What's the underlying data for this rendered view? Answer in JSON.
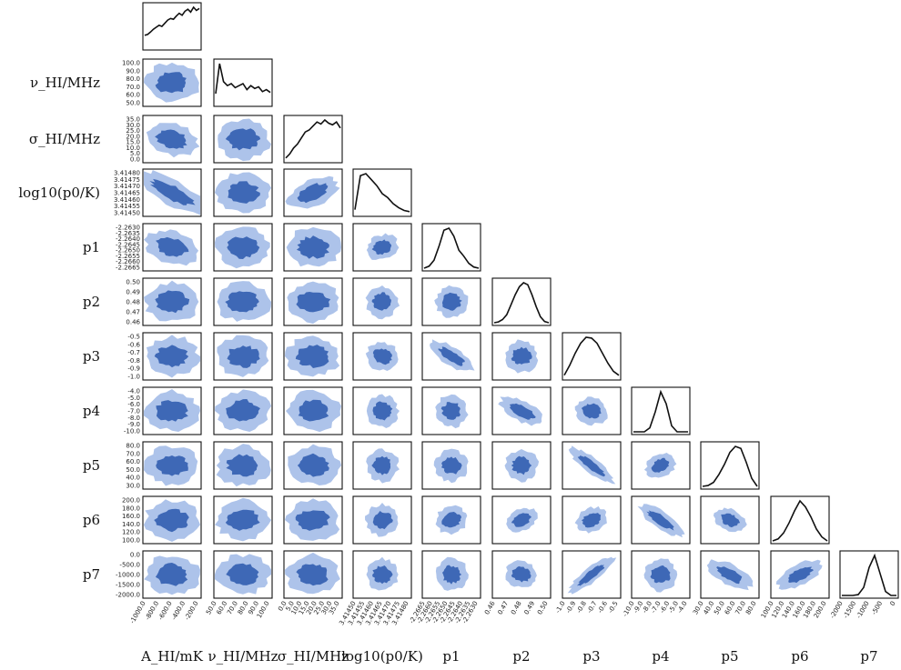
{
  "chart_data": {
    "type": "corner",
    "description_colors": {
      "outer": "#adc3ea",
      "inner": "#3e68b6",
      "line": "#111111"
    },
    "parameters": [
      {
        "key": "A",
        "row_label": "",
        "col_label": "A_HI/mK",
        "ticks": [
          "-1000.0",
          "-800.0",
          "-600.0",
          "-400.0",
          "-200.0"
        ]
      },
      {
        "key": "nu",
        "row_label": "ν_HI/MHz",
        "col_label": "ν_HI/MHz",
        "ticks": [
          "50.0",
          "60.0",
          "70.0",
          "80.0",
          "90.0",
          "100.0"
        ],
        "y_ticks": [
          "100.0",
          "90.0",
          "80.0",
          "70.0",
          "60.0",
          "50.0"
        ]
      },
      {
        "key": "sigma",
        "row_label": "σ_HI/MHz",
        "col_label": "σ_HI/MHz",
        "ticks": [
          "0.0",
          "5.0",
          "10.0",
          "15.0",
          "20.0",
          "25.0",
          "30.0",
          "35.0"
        ],
        "y_ticks": [
          "35.0",
          "30.0",
          "25.0",
          "20.0",
          "15.0",
          "10.0",
          "5.0",
          "0.0"
        ]
      },
      {
        "key": "p0",
        "row_label": "log10(p0/K)",
        "col_label": "log10(p0/K)",
        "ticks": [
          "3.41450",
          "3.41455",
          "3.41460",
          "3.41465",
          "3.41470",
          "3.41475",
          "3.41480"
        ],
        "y_ticks": [
          "3.41480",
          "3.41475",
          "3.41470",
          "3.41465",
          "3.41460",
          "3.41455",
          "3.41450"
        ]
      },
      {
        "key": "p1",
        "row_label": "p1",
        "col_label": "p1",
        "ticks": [
          "-2.2665",
          "-2.2660",
          "-2.2655",
          "-2.2650",
          "-2.2645",
          "-2.2640",
          "-2.2635",
          "-2.2630"
        ],
        "y_ticks": [
          "-2.2630",
          "-2.2635",
          "-2.2640",
          "-2.2645",
          "-2.2650",
          "-2.2655",
          "-2.2660",
          "-2.2665"
        ]
      },
      {
        "key": "p2",
        "row_label": "p2",
        "col_label": "p2",
        "ticks": [
          "0.46",
          "0.47",
          "0.48",
          "0.49",
          "0.50"
        ],
        "y_ticks": [
          "0.50",
          "0.49",
          "0.48",
          "0.47",
          "0.46"
        ]
      },
      {
        "key": "p3",
        "row_label": "p3",
        "col_label": "p3",
        "ticks": [
          "-1.0",
          "-0.9",
          "-0.8",
          "-0.7",
          "-0.6",
          "-0.5"
        ],
        "y_ticks": [
          "-0.5",
          "-0.6",
          "-0.7",
          "-0.8",
          "-0.9",
          "-1.0"
        ]
      },
      {
        "key": "p4",
        "row_label": "p4",
        "col_label": "p4",
        "ticks": [
          "-10.0",
          "-9.0",
          "-8.0",
          "-7.0",
          "-6.0",
          "-5.0",
          "-4.0"
        ],
        "y_ticks": [
          "-4.0",
          "-5.0",
          "-6.0",
          "-7.0",
          "-8.0",
          "-9.0",
          "-10.0"
        ]
      },
      {
        "key": "p5",
        "row_label": "p5",
        "col_label": "p5",
        "ticks": [
          "30.0",
          "40.0",
          "50.0",
          "60.0",
          "70.0",
          "80.0"
        ],
        "y_ticks": [
          "80.0",
          "70.0",
          "60.0",
          "50.0",
          "40.0",
          "30.0"
        ]
      },
      {
        "key": "p6",
        "row_label": "p6",
        "col_label": "p6",
        "ticks": [
          "100.0",
          "120.0",
          "140.0",
          "160.0",
          "180.0",
          "200.0"
        ],
        "y_ticks": [
          "200.0",
          "180.0",
          "160.0",
          "140.0",
          "120.0",
          "100.0"
        ]
      },
      {
        "key": "p7",
        "row_label": "p7",
        "col_label": "p7",
        "ticks": [
          "-2000",
          "-1500",
          "-1000",
          "-500",
          "0"
        ],
        "y_ticks": [
          "0.0",
          "-500.0",
          "-1000.0",
          "-1500.0",
          "-2000.0"
        ]
      }
    ],
    "diagonal_curves": [
      [
        0.3,
        0.32,
        0.38,
        0.45,
        0.5,
        0.55,
        0.52,
        0.6,
        0.68,
        0.72,
        0.7,
        0.78,
        0.85,
        0.8,
        0.9,
        0.95,
        0.88,
        1.0,
        0.92,
        0.97
      ],
      [
        0.25,
        1.0,
        0.55,
        0.45,
        0.5,
        0.4,
        0.45,
        0.5,
        0.35,
        0.45,
        0.38,
        0.42,
        0.3,
        0.35,
        0.28
      ],
      [
        0.05,
        0.15,
        0.3,
        0.4,
        0.55,
        0.7,
        0.75,
        0.85,
        0.95,
        0.9,
        1.0,
        0.92,
        0.88,
        0.95,
        0.8
      ],
      [
        0.1,
        0.95,
        1.0,
        0.85,
        0.7,
        0.5,
        0.4,
        0.25,
        0.15,
        0.08,
        0.05
      ],
      [
        0.0,
        0.05,
        0.2,
        0.55,
        0.95,
        1.0,
        0.8,
        0.45,
        0.3,
        0.12,
        0.03,
        0.0
      ],
      [
        0.0,
        0.02,
        0.08,
        0.2,
        0.45,
        0.7,
        0.9,
        1.0,
        0.95,
        0.7,
        0.4,
        0.15,
        0.03,
        0.0
      ],
      [
        0.05,
        0.3,
        0.6,
        0.85,
        1.0,
        0.98,
        0.85,
        0.6,
        0.35,
        0.15,
        0.05
      ],
      [
        0.0,
        0.0,
        0.0,
        0.1,
        0.5,
        1.0,
        0.7,
        0.15,
        0.0,
        0.0,
        0.0
      ],
      [
        0.0,
        0.02,
        0.1,
        0.3,
        0.55,
        0.85,
        1.0,
        0.95,
        0.6,
        0.2,
        0.0
      ],
      [
        0.0,
        0.05,
        0.2,
        0.45,
        0.75,
        1.0,
        0.85,
        0.6,
        0.3,
        0.1,
        0.0
      ],
      [
        0.0,
        0.0,
        0.0,
        0.02,
        0.2,
        0.7,
        1.0,
        0.55,
        0.1,
        0.0,
        0.0
      ]
    ]
  }
}
